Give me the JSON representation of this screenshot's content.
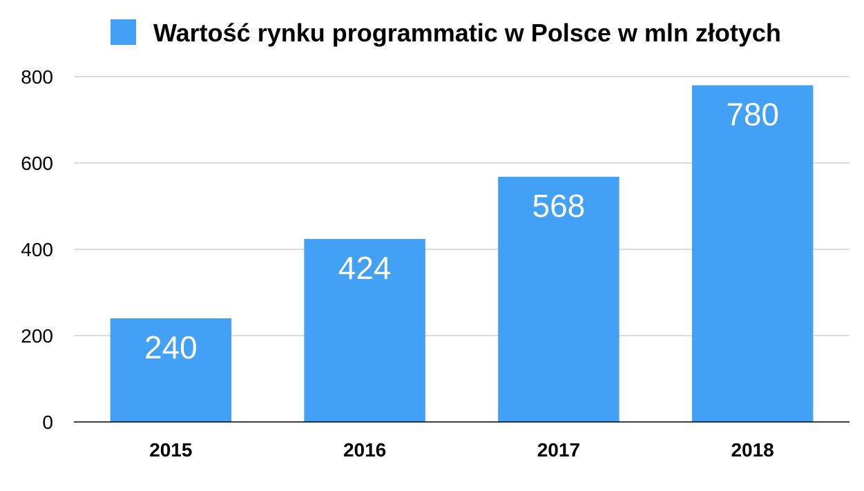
{
  "chart_data": {
    "type": "bar",
    "categories": [
      "2015",
      "2016",
      "2017",
      "2018"
    ],
    "series": [
      {
        "name": "Wartość rynku programmatic w Polsce w mln złotych",
        "values": [
          240,
          424,
          568,
          780
        ],
        "color": "#42a1f5"
      }
    ],
    "title": "",
    "xlabel": "",
    "ylabel": "",
    "ylim": [
      0,
      800
    ],
    "yticks": [
      0,
      200,
      400,
      600,
      800
    ],
    "grid": true,
    "legend_position": "top",
    "data_labels": [
      "240",
      "424",
      "568",
      "780"
    ],
    "data_label_color": "#ffffff"
  }
}
